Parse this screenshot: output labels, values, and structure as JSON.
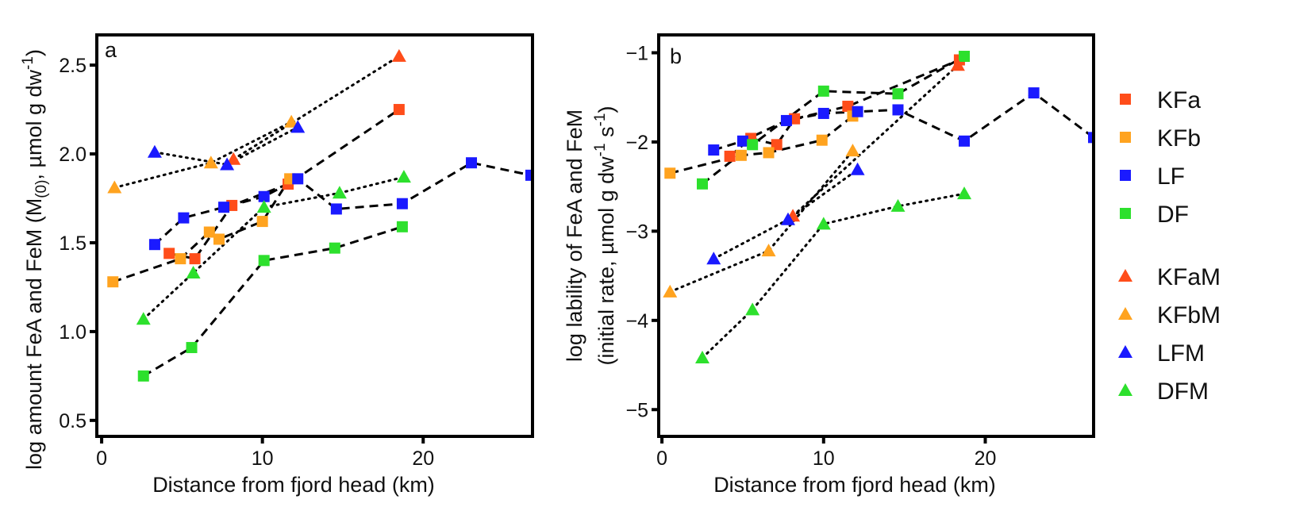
{
  "colors": {
    "KFa": "#ff4d1a",
    "KFb": "#ffa31f",
    "LF": "#1a1aff",
    "DF": "#2de02d"
  },
  "legend": {
    "squares": [
      {
        "label": "KFa",
        "color_key": "KFa"
      },
      {
        "label": "KFb",
        "color_key": "KFb"
      },
      {
        "label": "LF",
        "color_key": "LF"
      },
      {
        "label": "DF",
        "color_key": "DF"
      }
    ],
    "triangles": [
      {
        "label": "KFaM",
        "color_key": "KFa"
      },
      {
        "label": "KFbM",
        "color_key": "KFb"
      },
      {
        "label": "LFM",
        "color_key": "LF"
      },
      {
        "label": "DFM",
        "color_key": "DF"
      }
    ]
  },
  "chart_data": [
    {
      "type": "scatter",
      "panel_label": "a",
      "title": "",
      "xlabel": "Distance from fjord head (km)",
      "ylabel_parts": {
        "pre": "log amount FeA and FeM (M",
        "sub": "(0)",
        "mid": ", µmol g dw",
        "sup": "-1",
        "post": ")"
      },
      "xlim": [
        -0.3,
        26.8
      ],
      "ylim": [
        0.41,
        2.67
      ],
      "xticks": [
        0,
        10,
        20
      ],
      "yticks": [
        0.5,
        1.0,
        1.5,
        2.0,
        2.5
      ],
      "ytick_labels": [
        "0.5",
        "1.0",
        "1.5",
        "2.0",
        "2.5"
      ],
      "series": [
        {
          "name": "KFa",
          "color_key": "KFa",
          "marker": "square",
          "line": "dashed",
          "points": [
            [
              4.2,
              1.44
            ],
            [
              5.8,
              1.41
            ],
            [
              8.1,
              1.71
            ],
            [
              11.6,
              1.83
            ],
            [
              18.5,
              2.25
            ]
          ]
        },
        {
          "name": "KFb",
          "color_key": "KFb",
          "marker": "square",
          "line": "dashed",
          "points": [
            [
              0.7,
              1.28
            ],
            [
              4.9,
              1.41
            ],
            [
              6.7,
              1.56
            ],
            [
              7.3,
              1.52
            ],
            [
              10.0,
              1.62
            ],
            [
              11.7,
              1.86
            ]
          ]
        },
        {
          "name": "LF",
          "color_key": "LF",
          "marker": "square",
          "line": "dashed",
          "points": [
            [
              3.3,
              1.49
            ],
            [
              5.1,
              1.64
            ],
            [
              7.6,
              1.7
            ],
            [
              10.1,
              1.76
            ],
            [
              12.2,
              1.86
            ],
            [
              14.6,
              1.69
            ],
            [
              18.7,
              1.72
            ],
            [
              23.0,
              1.95
            ],
            [
              26.7,
              1.88
            ]
          ]
        },
        {
          "name": "DF",
          "color_key": "DF",
          "marker": "square",
          "line": "dashed",
          "points": [
            [
              2.6,
              0.75
            ],
            [
              5.6,
              0.91
            ],
            [
              10.1,
              1.4
            ],
            [
              14.5,
              1.47
            ],
            [
              18.7,
              1.59
            ]
          ]
        },
        {
          "name": "KFaM",
          "color_key": "KFa",
          "marker": "triangle",
          "line": "dotted",
          "points": [
            [
              8.2,
              1.97
            ],
            [
              18.5,
              2.55
            ]
          ]
        },
        {
          "name": "KFbM",
          "color_key": "KFb",
          "marker": "triangle",
          "line": "dotted",
          "points": [
            [
              0.8,
              1.81
            ],
            [
              6.8,
              1.95
            ],
            [
              11.8,
              2.18
            ]
          ]
        },
        {
          "name": "LFM",
          "color_key": "LF",
          "marker": "triangle",
          "line": "dotted",
          "points": [
            [
              3.3,
              2.01
            ],
            [
              7.8,
              1.94
            ],
            [
              12.2,
              2.15
            ]
          ]
        },
        {
          "name": "DFM",
          "color_key": "DF",
          "marker": "triangle",
          "line": "dotted",
          "points": [
            [
              2.6,
              1.07
            ],
            [
              5.7,
              1.33
            ],
            [
              10.1,
              1.7
            ],
            [
              14.8,
              1.78
            ],
            [
              18.8,
              1.87
            ]
          ]
        }
      ]
    },
    {
      "type": "scatter",
      "panel_label": "b",
      "title": "",
      "xlabel": "Distance from fjord head (km)",
      "ylabel_line1": "log lability of FeA and FeM",
      "ylabel_line2_parts": {
        "pre": "(initial rate, µmol g dw",
        "sup1": "-1",
        "mid": " s",
        "sup2": "-1",
        "post": ")"
      },
      "xlim": [
        -0.2,
        26.7
      ],
      "ylim": [
        -5.3,
        -0.8
      ],
      "xticks": [
        0,
        10,
        20
      ],
      "yticks": [
        -5,
        -4,
        -3,
        -2,
        -1
      ],
      "ytick_labels": [
        "−5",
        "−4",
        "−3",
        "−2",
        "−1"
      ],
      "series": [
        {
          "name": "KFa",
          "color_key": "KFa",
          "marker": "square",
          "line": "dashed",
          "points": [
            [
              4.2,
              -2.16
            ],
            [
              5.5,
              -1.96
            ],
            [
              7.1,
              -2.03
            ],
            [
              8.2,
              -1.74
            ],
            [
              11.5,
              -1.6
            ],
            [
              18.4,
              -1.08
            ]
          ]
        },
        {
          "name": "KFb",
          "color_key": "KFb",
          "marker": "square",
          "line": "dashed",
          "points": [
            [
              0.5,
              -2.35
            ],
            [
              4.9,
              -2.15
            ],
            [
              6.6,
              -2.12
            ],
            [
              9.9,
              -1.98
            ],
            [
              11.8,
              -1.71
            ]
          ]
        },
        {
          "name": "LF",
          "color_key": "LF",
          "marker": "square",
          "line": "dashed",
          "points": [
            [
              3.2,
              -2.09
            ],
            [
              5.0,
              -1.99
            ],
            [
              7.7,
              -1.76
            ],
            [
              10.0,
              -1.68
            ],
            [
              12.1,
              -1.66
            ],
            [
              14.6,
              -1.64
            ],
            [
              18.7,
              -1.99
            ],
            [
              23.0,
              -1.45
            ],
            [
              26.7,
              -1.95
            ]
          ]
        },
        {
          "name": "DF",
          "color_key": "DF",
          "marker": "square",
          "line": "dashed",
          "points": [
            [
              2.5,
              -2.47
            ],
            [
              5.6,
              -2.03
            ],
            [
              10.0,
              -1.43
            ],
            [
              14.6,
              -1.46
            ],
            [
              18.7,
              -1.04
            ]
          ]
        },
        {
          "name": "KFaM",
          "color_key": "KFa",
          "marker": "triangle",
          "line": "dotted",
          "points": [
            [
              8.1,
              -2.83
            ],
            [
              18.3,
              -1.14
            ]
          ]
        },
        {
          "name": "KFbM",
          "color_key": "KFb",
          "marker": "triangle",
          "line": "dotted",
          "points": [
            [
              0.5,
              -3.68
            ],
            [
              6.6,
              -3.22
            ],
            [
              11.8,
              -2.1
            ]
          ]
        },
        {
          "name": "LFM",
          "color_key": "LF",
          "marker": "triangle",
          "line": "dotted",
          "points": [
            [
              3.2,
              -3.31
            ],
            [
              7.8,
              -2.87
            ],
            [
              12.1,
              -2.31
            ]
          ]
        },
        {
          "name": "DFM",
          "color_key": "DF",
          "marker": "triangle",
          "line": "dotted",
          "points": [
            [
              2.5,
              -4.42
            ],
            [
              5.6,
              -3.88
            ],
            [
              10.0,
              -2.92
            ],
            [
              14.6,
              -2.72
            ],
            [
              18.7,
              -2.58
            ]
          ]
        }
      ]
    }
  ]
}
